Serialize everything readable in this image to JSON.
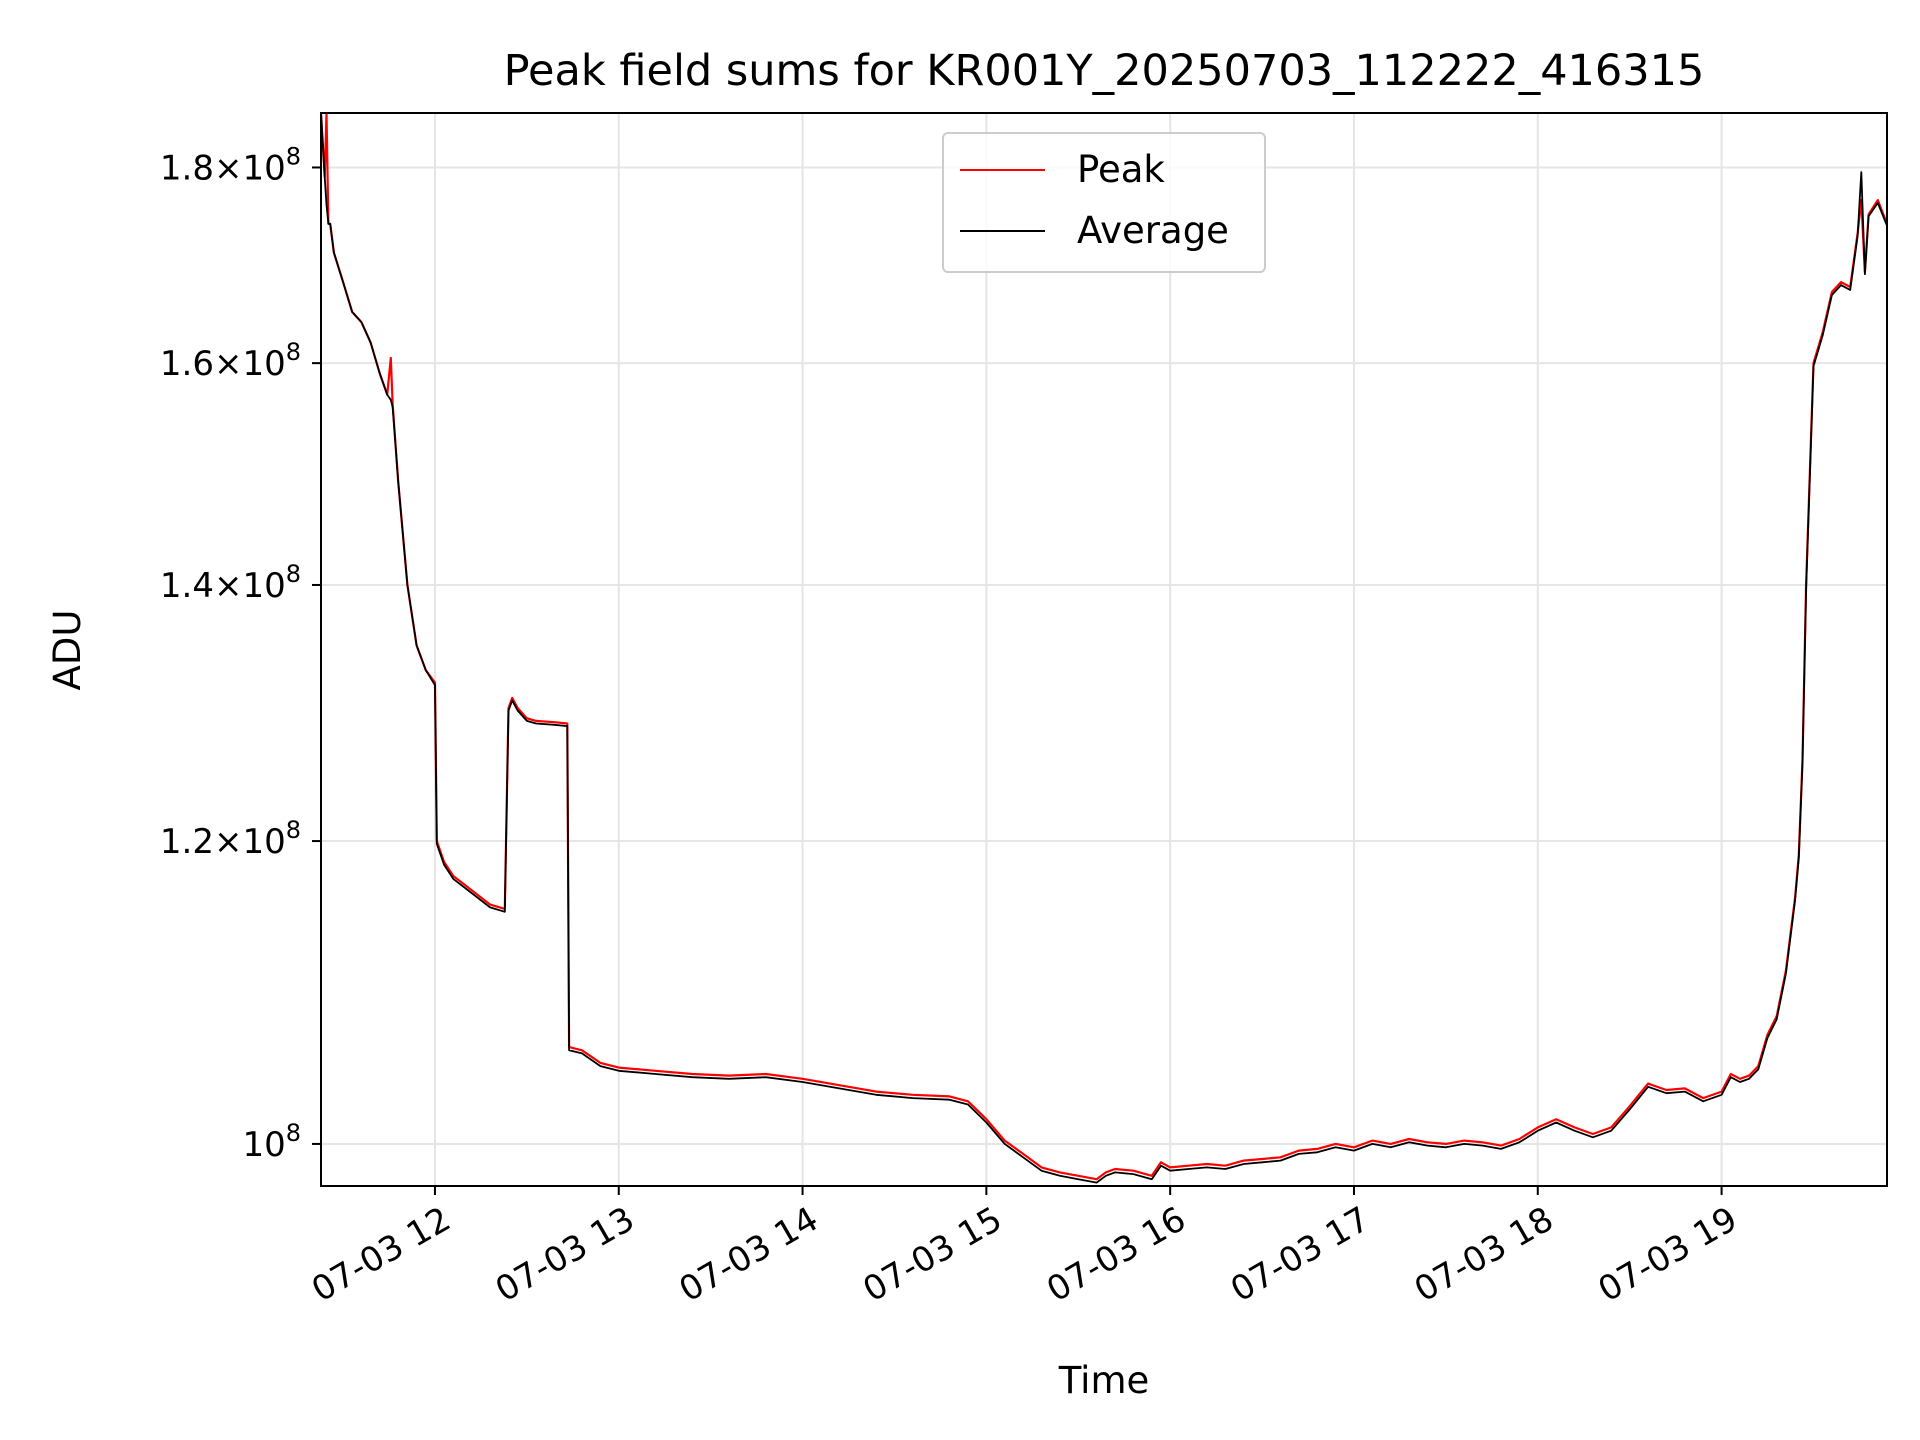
{
  "chart_data": {
    "type": "line",
    "title": "Peak field sums for KR001Y_20250703_112222_416315",
    "xlabel": "Time",
    "ylabel": "ADU",
    "x_unit": "hours since 00:00 on 07-03",
    "xlim": [
      11.38,
      19.9
    ],
    "ylim": [
      97500000.0,
      186000000.0
    ],
    "yscale": "log",
    "grid": true,
    "legend_position": "upper center",
    "x_ticks": [
      {
        "value": 12,
        "label": "07-03 12"
      },
      {
        "value": 13,
        "label": "07-03 13"
      },
      {
        "value": 14,
        "label": "07-03 14"
      },
      {
        "value": 15,
        "label": "07-03 15"
      },
      {
        "value": 16,
        "label": "07-03 16"
      },
      {
        "value": 17,
        "label": "07-03 17"
      },
      {
        "value": 18,
        "label": "07-03 18"
      },
      {
        "value": 19,
        "label": "07-03 19"
      }
    ],
    "y_ticks": [
      {
        "value": 100000000,
        "mantissa": "",
        "exponent": "8"
      },
      {
        "value": 120000000,
        "mantissa": "1.2",
        "exponent": "8"
      },
      {
        "value": 140000000,
        "mantissa": "1.4",
        "exponent": "8"
      },
      {
        "value": 160000000,
        "mantissa": "1.6",
        "exponent": "8"
      },
      {
        "value": 180000000,
        "mantissa": "1.8",
        "exponent": "8"
      }
    ],
    "series": [
      {
        "name": "Peak",
        "color": "#ff0000",
        "x": [
          11.38,
          11.4,
          11.41,
          11.42,
          11.43,
          11.45,
          11.5,
          11.55,
          11.6,
          11.65,
          11.7,
          11.74,
          11.76,
          11.77,
          11.8,
          11.85,
          11.9,
          11.95,
          12.0,
          12.01,
          12.05,
          12.1,
          12.2,
          12.3,
          12.38,
          12.4,
          12.42,
          12.45,
          12.5,
          12.55,
          12.65,
          12.72,
          12.73,
          12.8,
          12.9,
          13.0,
          13.2,
          13.4,
          13.6,
          13.8,
          14.0,
          14.2,
          14.4,
          14.6,
          14.8,
          14.9,
          15.0,
          15.1,
          15.2,
          15.3,
          15.4,
          15.5,
          15.6,
          15.65,
          15.7,
          15.8,
          15.9,
          15.95,
          16.0,
          16.1,
          16.2,
          16.3,
          16.4,
          16.5,
          16.6,
          16.7,
          16.8,
          16.9,
          17.0,
          17.1,
          17.2,
          17.3,
          17.4,
          17.5,
          17.6,
          17.7,
          17.8,
          17.9,
          18.0,
          18.1,
          18.2,
          18.3,
          18.4,
          18.5,
          18.6,
          18.7,
          18.8,
          18.9,
          19.0,
          19.05,
          19.1,
          19.15,
          19.2,
          19.25,
          19.3,
          19.35,
          19.4,
          19.42,
          19.44,
          19.46,
          19.5,
          19.55,
          19.6,
          19.65,
          19.7,
          19.74,
          19.76,
          19.78,
          19.8,
          19.85,
          19.9
        ],
        "y": [
          186000000,
          179000000,
          186000000,
          174000000,
          174000000,
          171000000,
          168000000,
          165000000,
          164000000,
          162000000,
          159000000,
          157000000,
          160500000,
          156000000,
          149000000,
          140000000,
          135000000,
          133000000,
          132000000,
          120000000,
          118500000,
          117500000,
          116500000,
          115500000,
          115200000,
          130000000,
          130800000,
          130000000,
          129200000,
          129000000,
          128900000,
          128800000,
          106000000,
          105800000,
          105000000,
          104700000,
          104500000,
          104300000,
          104200000,
          104300000,
          104000000,
          103600000,
          103200000,
          103000000,
          102900000,
          102600000,
          101500000,
          100200000,
          99400000,
          98600000,
          98300000,
          98100000,
          97900000,
          98300000,
          98500000,
          98400000,
          98100000,
          98900000,
          98600000,
          98700000,
          98800000,
          98700000,
          99000000,
          99100000,
          99200000,
          99600000,
          99700000,
          100000000,
          99800000,
          100200000,
          100000000,
          100300000,
          100100000,
          100000000,
          100200000,
          100100000,
          99900000,
          100300000,
          101000000,
          101500000,
          101000000,
          100600000,
          101000000,
          102300000,
          103700000,
          103300000,
          103400000,
          102800000,
          103200000,
          104300000,
          104000000,
          104200000,
          104800000,
          106800000,
          108000000,
          111000000,
          116000000,
          119000000,
          126000000,
          140000000,
          160000000,
          163000000,
          167000000,
          168000000,
          167500000,
          173000000,
          176500000,
          169000000,
          175000000,
          176500000,
          174000000
        ]
      },
      {
        "name": "Average",
        "color": "#000000",
        "x": [
          11.38,
          11.4,
          11.41,
          11.42,
          11.43,
          11.45,
          11.5,
          11.55,
          11.6,
          11.65,
          11.7,
          11.74,
          11.76,
          11.77,
          11.8,
          11.85,
          11.9,
          11.95,
          12.0,
          12.01,
          12.05,
          12.1,
          12.2,
          12.3,
          12.38,
          12.4,
          12.42,
          12.45,
          12.5,
          12.55,
          12.65,
          12.72,
          12.73,
          12.8,
          12.9,
          13.0,
          13.2,
          13.4,
          13.6,
          13.8,
          14.0,
          14.2,
          14.4,
          14.6,
          14.8,
          14.9,
          15.0,
          15.1,
          15.2,
          15.3,
          15.4,
          15.5,
          15.6,
          15.65,
          15.7,
          15.8,
          15.9,
          15.95,
          16.0,
          16.1,
          16.2,
          16.3,
          16.4,
          16.5,
          16.6,
          16.7,
          16.8,
          16.9,
          17.0,
          17.1,
          17.2,
          17.3,
          17.4,
          17.5,
          17.6,
          17.7,
          17.8,
          17.9,
          18.0,
          18.1,
          18.2,
          18.3,
          18.4,
          18.5,
          18.6,
          18.7,
          18.8,
          18.9,
          19.0,
          19.05,
          19.1,
          19.15,
          19.2,
          19.25,
          19.3,
          19.35,
          19.4,
          19.42,
          19.44,
          19.46,
          19.5,
          19.55,
          19.6,
          19.65,
          19.7,
          19.74,
          19.76,
          19.78,
          19.8,
          19.85,
          19.9
        ],
        "y": [
          186000000,
          179000000,
          176000000,
          174000000,
          174000000,
          171000000,
          168000000,
          165000000,
          164000000,
          162000000,
          159000000,
          157000000,
          156500000,
          155800000,
          149000000,
          140000000,
          135000000,
          133000000,
          131800000,
          119800000,
          118300000,
          117300000,
          116300000,
          115300000,
          115000000,
          129800000,
          130600000,
          129800000,
          129000000,
          128800000,
          128700000,
          128600000,
          105800000,
          105600000,
          104800000,
          104500000,
          104300000,
          104100000,
          104000000,
          104100000,
          103800000,
          103400000,
          103000000,
          102800000,
          102700000,
          102400000,
          101300000,
          100000000,
          99200000,
          98400000,
          98100000,
          97900000,
          97700000,
          98100000,
          98300000,
          98200000,
          97900000,
          98700000,
          98400000,
          98500000,
          98600000,
          98500000,
          98800000,
          98900000,
          99000000,
          99400000,
          99500000,
          99800000,
          99600000,
          100000000,
          99800000,
          100100000,
          99900000,
          99800000,
          100000000,
          99900000,
          99700000,
          100100000,
          100800000,
          101300000,
          100800000,
          100400000,
          100800000,
          102100000,
          103500000,
          103100000,
          103200000,
          102600000,
          103000000,
          104100000,
          103800000,
          104000000,
          104600000,
          106600000,
          107800000,
          110800000,
          115800000,
          118800000,
          125800000,
          139600000,
          159700000,
          162700000,
          166700000,
          167700000,
          167200000,
          172700000,
          179500000,
          168800000,
          174800000,
          176200000,
          173800000
        ]
      }
    ]
  }
}
